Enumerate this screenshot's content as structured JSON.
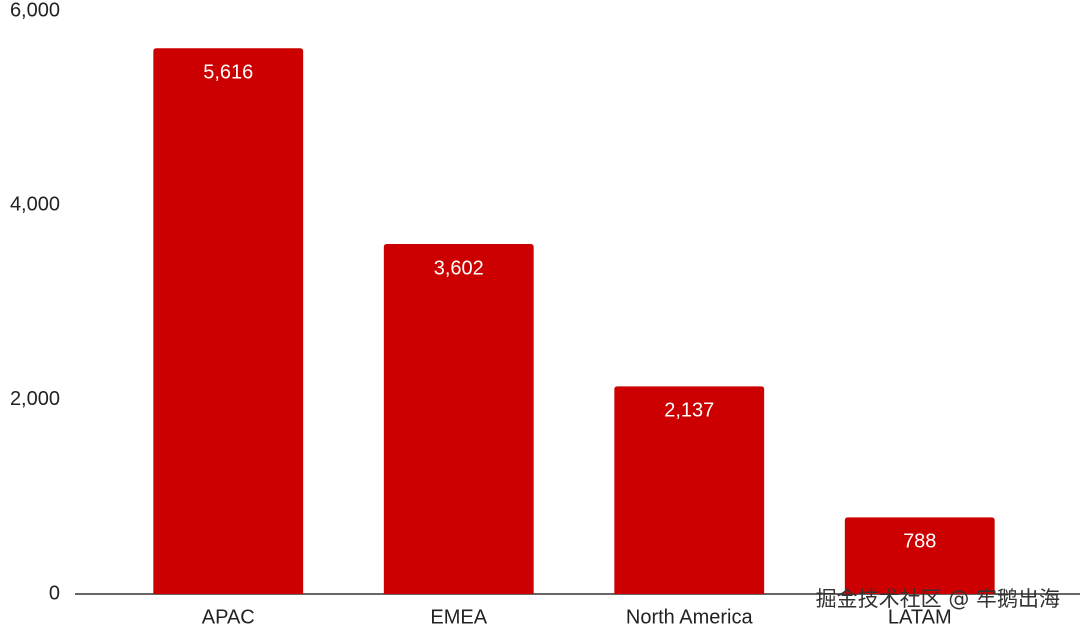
{
  "chart_data": {
    "type": "bar",
    "categories": [
      "APAC",
      "EMEA",
      "North America",
      "LATAM"
    ],
    "values": [
      5616,
      3602,
      2137,
      788
    ],
    "value_labels": [
      "5,616",
      "3,602",
      "2,137",
      "788"
    ],
    "color": "#cc0000",
    "ylim": [
      0,
      6000
    ],
    "yticks": [
      0,
      {
        "value": 2000,
        "label": "2,000"
      },
      {
        "value": 4000,
        "label": "4,000"
      },
      {
        "value": 6000,
        "label": "6,000"
      }
    ],
    "grid": false,
    "watermark": "掘金技术社区 @ 牢鹅出海"
  }
}
